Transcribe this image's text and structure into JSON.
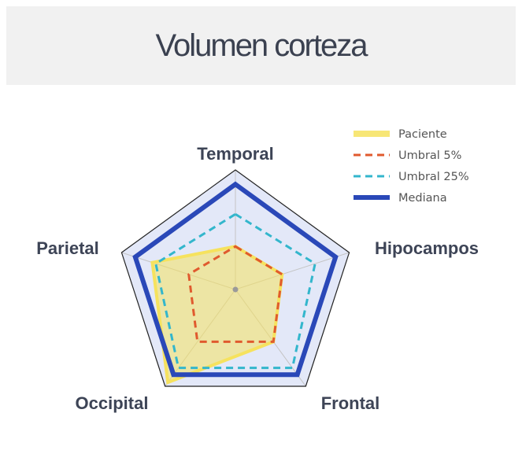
{
  "title": "Volumen corteza",
  "chart_data": {
    "type": "radar",
    "axes": [
      "Temporal",
      "Hipocampos",
      "Frontal",
      "Occipital",
      "Parietal"
    ],
    "range": [
      0,
      1
    ],
    "series": [
      {
        "name": "Paciente",
        "values": [
          0.36,
          0.41,
          0.54,
          0.96,
          0.73
        ],
        "color": "#f6e25e",
        "style": "filled"
      },
      {
        "name": "Umbral 5%",
        "values": [
          0.36,
          0.41,
          0.54,
          0.54,
          0.41
        ],
        "color": "#e05a2e",
        "style": "dashed"
      },
      {
        "name": "Umbral 25%",
        "values": [
          0.63,
          0.7,
          0.81,
          0.81,
          0.7
        ],
        "color": "#33b6cc",
        "style": "dashed"
      },
      {
        "name": "Mediana",
        "values": [
          0.88,
          0.88,
          0.88,
          0.88,
          0.88
        ],
        "color": "#2a48b8",
        "style": "solid-thick"
      }
    ],
    "band_color": "#e3e8f8",
    "legend_position": "top-right",
    "grid": true
  }
}
